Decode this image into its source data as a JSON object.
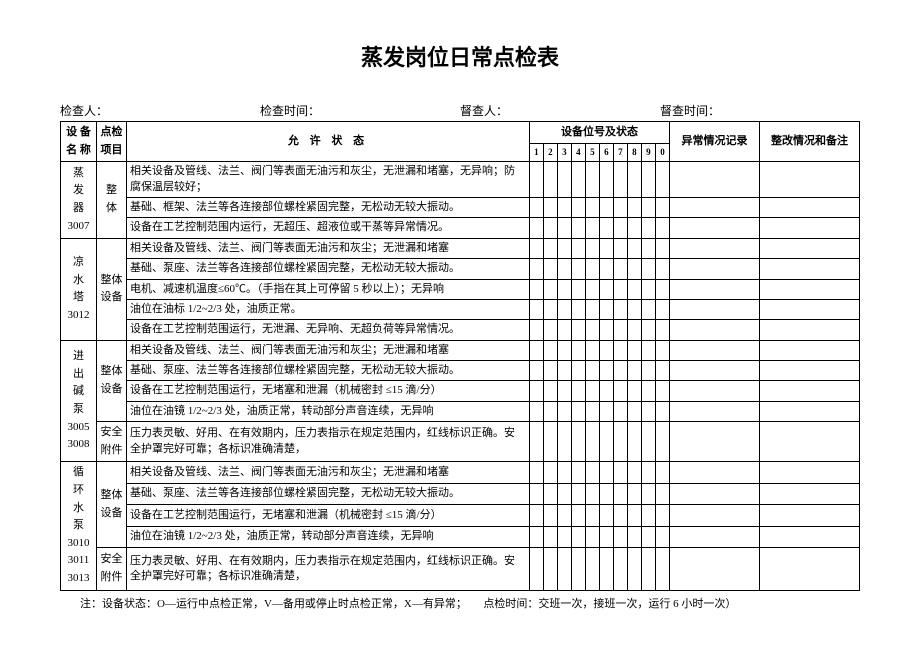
{
  "title": "蒸发岗位日常点检表",
  "header": {
    "inspector_label": "检查人：",
    "inspect_time_label": "检查时间：",
    "reviewer_label": "督查人：",
    "review_time_label": "督查时间："
  },
  "columns": {
    "equip_name": "设 备\n名 称",
    "check_item": "点检\n项目",
    "allow_state": "允 许 状 态",
    "device_status": "设备位号及状态",
    "abnormal": "异常情况记录",
    "fix": "整改情况和备注"
  },
  "num_headers": [
    "1",
    "2",
    "3",
    "4",
    "5",
    "6",
    "7",
    "8",
    "9",
    "0"
  ],
  "groups": [
    {
      "equip": "蒸\n发\n器\n3007",
      "items": [
        {
          "item": "整\n体",
          "rowspan": 3,
          "rows": [
            "相关设备及管线、法兰、阀门等表面无油污和灰尘，无泄漏和堵塞，无异响；防腐保温层较好；",
            "基础、框架、法兰等各连接部位螺栓紧固完整，无松动无较大振动。",
            "设备在工艺控制范围内运行，无超压、超液位或干蒸等异常情况。"
          ]
        }
      ]
    },
    {
      "equip": "凉\n水\n塔\n3012",
      "items": [
        {
          "item": "整体\n设备",
          "rowspan": 5,
          "rows": [
            "相关设备及管线、法兰、阀门等表面无油污和灰尘；无泄漏和堵塞",
            "基础、泵座、法兰等各连接部位螺栓紧固完整，无松动无较大振动。",
            "电机、减速机温度≤60℃。（手指在其上可停留 5 秒以上）；无异响",
            "油位在油标 1/2~2/3 处，油质正常。",
            "设备在工艺控制范围运行，无泄漏、无异响、无超负荷等异常情况。"
          ]
        }
      ]
    },
    {
      "equip": "进\n出\n碱\n泵\n3005\n3008",
      "items": [
        {
          "item": "整体\n设备",
          "rowspan": 4,
          "rows": [
            "相关设备及管线、法兰、阀门等表面无油污和灰尘；无泄漏和堵塞",
            "基础、泵座、法兰等各连接部位螺栓紧固完整，无松动无较大振动。",
            "设备在工艺控制范围运行，无堵塞和泄漏（机械密封 ≤15 滴/分）",
            "油位在油镜 1/2~2/3 处，油质正常，转动部分声音连续，无异响"
          ]
        },
        {
          "item": "安全\n附件",
          "rowspan": 1,
          "rows": [
            "压力表灵敏、好用、在有效期内，压力表指示在规定范围内，红线标识正确。安全护罩完好可靠；各标识准确清楚，"
          ]
        }
      ]
    },
    {
      "equip": "循\n环\n水\n泵\n3010\n3011\n3013",
      "items": [
        {
          "item": "整体\n设备",
          "rowspan": 4,
          "rows": [
            "相关设备及管线、法兰、阀门等表面无油污和灰尘；无泄漏和堵塞",
            "基础、泵座、法兰等各连接部位螺栓紧固完整，无松动无较大振动。",
            "设备在工艺控制范围运行，无堵塞和泄漏（机械密封 ≤15 滴/分）",
            "油位在油镜 1/2~2/3 处，油质正常，转动部分声音连续，无异响"
          ]
        },
        {
          "item": "安全\n附件",
          "rowspan": 1,
          "rows": [
            "压力表灵敏、好用、在有效期内，压力表指示在规定范围内，红线标识正确。安全护罩完好可靠；各标识准确清楚，"
          ]
        }
      ]
    }
  ],
  "footnote": "注：设备状态：O—运行中点检正常，V—备用或停止时点检正常，X—有异常；　　点检时间：交班一次，接班一次，运行 6 小时一次）",
  "style": {
    "background": "#ffffff",
    "text_color": "#000000",
    "border_color": "#000000",
    "title_fontsize": 22,
    "body_fontsize": 11
  }
}
